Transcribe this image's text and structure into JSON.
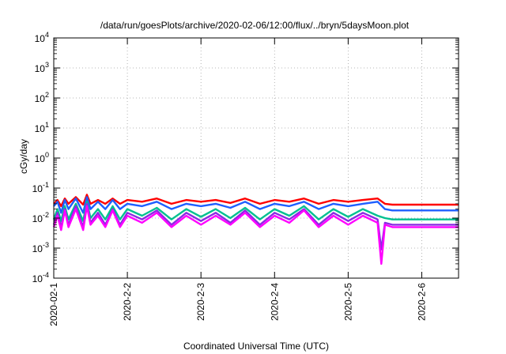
{
  "chart_data": {
    "type": "line",
    "title": "/data/run/goesPlots/archive/2020-02-06/12:00/flux/../bryn/5daysMoon.plot",
    "xlabel": "Coordinated Universal Time (UTC)",
    "ylabel": "cGy/day",
    "yscale": "log",
    "ylim": [
      0.0001,
      10000
    ],
    "xlim": [
      0,
      5.5
    ],
    "grid": true,
    "y_ticks": [
      {
        "base": "10",
        "exp": "-4"
      },
      {
        "base": "10",
        "exp": "-3"
      },
      {
        "base": "10",
        "exp": "-2"
      },
      {
        "base": "10",
        "exp": "-1"
      },
      {
        "base": "10",
        "exp": "0"
      },
      {
        "base": "10",
        "exp": "1"
      },
      {
        "base": "10",
        "exp": "2"
      },
      {
        "base": "10",
        "exp": "3"
      },
      {
        "base": "10",
        "exp": "4"
      }
    ],
    "x_ticks": [
      "2020-02-1",
      "2020-2-2",
      "2020-2-3",
      "2020-2-4",
      "2020-2-5",
      "2020-2-6"
    ],
    "series": [
      {
        "color": "#ff0000",
        "x": [
          0.0,
          0.05,
          0.1,
          0.15,
          0.2,
          0.3,
          0.4,
          0.45,
          0.5,
          0.6,
          0.7,
          0.8,
          0.9,
          1.0,
          1.2,
          1.4,
          1.6,
          1.8,
          2.0,
          2.2,
          2.4,
          2.6,
          2.8,
          3.0,
          3.2,
          3.4,
          3.6,
          3.8,
          4.0,
          4.2,
          4.4,
          4.5,
          4.6,
          4.8,
          5.0,
          5.2,
          5.4,
          5.5
        ],
        "values": [
          0.03,
          0.04,
          0.025,
          0.045,
          0.03,
          0.05,
          0.028,
          0.06,
          0.03,
          0.04,
          0.03,
          0.045,
          0.03,
          0.04,
          0.035,
          0.045,
          0.03,
          0.04,
          0.035,
          0.04,
          0.032,
          0.045,
          0.03,
          0.04,
          0.035,
          0.045,
          0.03,
          0.04,
          0.035,
          0.04,
          0.045,
          0.03,
          0.028,
          0.028,
          0.028,
          0.028,
          0.028,
          0.028
        ]
      },
      {
        "color": "#1e5fff",
        "x": [
          0.0,
          0.05,
          0.1,
          0.15,
          0.2,
          0.3,
          0.4,
          0.45,
          0.5,
          0.6,
          0.7,
          0.8,
          0.9,
          1.0,
          1.2,
          1.4,
          1.6,
          1.8,
          2.0,
          2.2,
          2.4,
          2.6,
          2.8,
          3.0,
          3.2,
          3.4,
          3.6,
          3.8,
          4.0,
          4.2,
          4.4,
          4.5,
          4.6,
          4.8,
          5.0,
          5.2,
          5.4,
          5.5
        ],
        "values": [
          0.025,
          0.035,
          0.015,
          0.04,
          0.02,
          0.045,
          0.015,
          0.05,
          0.02,
          0.035,
          0.02,
          0.04,
          0.02,
          0.03,
          0.025,
          0.035,
          0.02,
          0.03,
          0.025,
          0.03,
          0.022,
          0.035,
          0.02,
          0.03,
          0.025,
          0.035,
          0.02,
          0.03,
          0.025,
          0.03,
          0.035,
          0.02,
          0.018,
          0.018,
          0.018,
          0.018,
          0.018,
          0.018
        ]
      },
      {
        "color": "#00c090",
        "x": [
          0.0,
          0.05,
          0.1,
          0.15,
          0.2,
          0.3,
          0.4,
          0.45,
          0.5,
          0.6,
          0.7,
          0.8,
          0.9,
          1.0,
          1.2,
          1.4,
          1.6,
          1.8,
          2.0,
          2.2,
          2.4,
          2.6,
          2.8,
          3.0,
          3.2,
          3.4,
          3.6,
          3.8,
          4.0,
          4.2,
          4.4,
          4.5,
          4.6,
          4.8,
          5.0,
          5.2,
          5.4,
          5.5
        ],
        "values": [
          0.009,
          0.02,
          0.008,
          0.025,
          0.009,
          0.03,
          0.008,
          0.035,
          0.01,
          0.02,
          0.009,
          0.025,
          0.009,
          0.02,
          0.012,
          0.022,
          0.009,
          0.02,
          0.011,
          0.02,
          0.01,
          0.022,
          0.009,
          0.02,
          0.012,
          0.025,
          0.009,
          0.02,
          0.011,
          0.02,
          0.012,
          0.01,
          0.009,
          0.009,
          0.009,
          0.009,
          0.009,
          0.009
        ]
      },
      {
        "color": "#8a2be2",
        "x": [
          0.0,
          0.05,
          0.1,
          0.15,
          0.2,
          0.3,
          0.4,
          0.45,
          0.5,
          0.6,
          0.7,
          0.8,
          0.9,
          1.0,
          1.2,
          1.4,
          1.6,
          1.8,
          2.0,
          2.2,
          2.4,
          2.6,
          2.8,
          3.0,
          3.2,
          3.4,
          3.6,
          3.8,
          4.0,
          4.2,
          4.4,
          4.45,
          4.5,
          4.6,
          4.8,
          5.0,
          5.2,
          5.4,
          5.5
        ],
        "values": [
          0.006,
          0.015,
          0.005,
          0.02,
          0.006,
          0.025,
          0.005,
          0.03,
          0.007,
          0.015,
          0.006,
          0.02,
          0.006,
          0.015,
          0.009,
          0.018,
          0.006,
          0.015,
          0.008,
          0.015,
          0.007,
          0.018,
          0.006,
          0.015,
          0.009,
          0.02,
          0.006,
          0.015,
          0.008,
          0.015,
          0.009,
          0.0009,
          0.007,
          0.006,
          0.006,
          0.006,
          0.006,
          0.006,
          0.006
        ]
      },
      {
        "color": "#ff00ff",
        "x": [
          0.0,
          0.05,
          0.1,
          0.15,
          0.2,
          0.3,
          0.4,
          0.45,
          0.5,
          0.6,
          0.7,
          0.8,
          0.9,
          1.0,
          1.2,
          1.4,
          1.6,
          1.8,
          2.0,
          2.2,
          2.4,
          2.6,
          2.8,
          3.0,
          3.2,
          3.4,
          3.6,
          3.8,
          4.0,
          4.2,
          4.4,
          4.45,
          4.5,
          4.6,
          4.8,
          5.0,
          5.2,
          5.4,
          5.5
        ],
        "values": [
          0.005,
          0.012,
          0.004,
          0.018,
          0.005,
          0.02,
          0.004,
          0.025,
          0.006,
          0.012,
          0.005,
          0.018,
          0.005,
          0.012,
          0.007,
          0.015,
          0.005,
          0.012,
          0.006,
          0.012,
          0.006,
          0.015,
          0.005,
          0.012,
          0.007,
          0.018,
          0.005,
          0.012,
          0.006,
          0.012,
          0.007,
          0.0003,
          0.006,
          0.005,
          0.005,
          0.005,
          0.005,
          0.005,
          0.005
        ]
      }
    ]
  }
}
